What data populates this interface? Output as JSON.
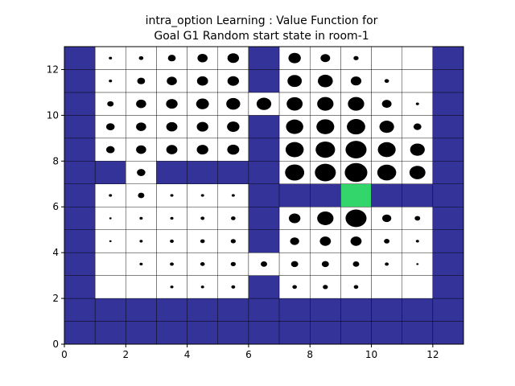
{
  "chart_data": {
    "type": "heatmap",
    "title_lines": [
      "intra_option Learning : Value Function for",
      "Goal G1 Random start state in room-1"
    ],
    "xlabel": "",
    "ylabel": "",
    "xlim": [
      0,
      13
    ],
    "ylim": [
      0,
      13
    ],
    "xticks": [
      0,
      2,
      4,
      6,
      8,
      10,
      12
    ],
    "yticks": [
      0,
      2,
      4,
      6,
      8,
      10,
      12
    ],
    "colors": {
      "wall": "#333399",
      "open": "#ffffff",
      "goal": "#33d66b",
      "value": "#000000",
      "grid": "#000000"
    },
    "goal_cell": {
      "col": 9,
      "row": 6
    },
    "open_cells": [
      [
        1,
        12
      ],
      [
        2,
        12
      ],
      [
        3,
        12
      ],
      [
        4,
        12
      ],
      [
        5,
        12
      ],
      [
        7,
        12
      ],
      [
        8,
        12
      ],
      [
        9,
        12
      ],
      [
        10,
        12
      ],
      [
        11,
        12
      ],
      [
        1,
        11
      ],
      [
        2,
        11
      ],
      [
        3,
        11
      ],
      [
        4,
        11
      ],
      [
        5,
        11
      ],
      [
        7,
        11
      ],
      [
        8,
        11
      ],
      [
        9,
        11
      ],
      [
        10,
        11
      ],
      [
        11,
        11
      ],
      [
        1,
        10
      ],
      [
        2,
        10
      ],
      [
        3,
        10
      ],
      [
        4,
        10
      ],
      [
        5,
        10
      ],
      [
        6,
        10
      ],
      [
        7,
        10
      ],
      [
        8,
        10
      ],
      [
        9,
        10
      ],
      [
        10,
        10
      ],
      [
        11,
        10
      ],
      [
        1,
        9
      ],
      [
        2,
        9
      ],
      [
        3,
        9
      ],
      [
        4,
        9
      ],
      [
        5,
        9
      ],
      [
        7,
        9
      ],
      [
        8,
        9
      ],
      [
        9,
        9
      ],
      [
        10,
        9
      ],
      [
        11,
        9
      ],
      [
        1,
        8
      ],
      [
        2,
        8
      ],
      [
        3,
        8
      ],
      [
        4,
        8
      ],
      [
        5,
        8
      ],
      [
        7,
        8
      ],
      [
        8,
        8
      ],
      [
        9,
        8
      ],
      [
        10,
        8
      ],
      [
        11,
        8
      ],
      [
        2,
        7
      ],
      [
        7,
        7
      ],
      [
        8,
        7
      ],
      [
        9,
        7
      ],
      [
        10,
        7
      ],
      [
        11,
        7
      ],
      [
        1,
        6
      ],
      [
        2,
        6
      ],
      [
        3,
        6
      ],
      [
        4,
        6
      ],
      [
        5,
        6
      ],
      [
        1,
        5
      ],
      [
        2,
        5
      ],
      [
        3,
        5
      ],
      [
        4,
        5
      ],
      [
        5,
        5
      ],
      [
        7,
        5
      ],
      [
        8,
        5
      ],
      [
        9,
        5
      ],
      [
        10,
        5
      ],
      [
        11,
        5
      ],
      [
        1,
        4
      ],
      [
        2,
        4
      ],
      [
        3,
        4
      ],
      [
        4,
        4
      ],
      [
        5,
        4
      ],
      [
        7,
        4
      ],
      [
        8,
        4
      ],
      [
        9,
        4
      ],
      [
        10,
        4
      ],
      [
        11,
        4
      ],
      [
        1,
        3
      ],
      [
        2,
        3
      ],
      [
        3,
        3
      ],
      [
        4,
        3
      ],
      [
        5,
        3
      ],
      [
        6,
        3
      ],
      [
        7,
        3
      ],
      [
        8,
        3
      ],
      [
        9,
        3
      ],
      [
        10,
        3
      ],
      [
        11,
        3
      ],
      [
        1,
        2
      ],
      [
        2,
        2
      ],
      [
        3,
        2
      ],
      [
        4,
        2
      ],
      [
        5,
        2
      ],
      [
        7,
        2
      ],
      [
        8,
        2
      ],
      [
        9,
        2
      ],
      [
        10,
        2
      ],
      [
        11,
        2
      ]
    ],
    "values": [
      [
        1,
        12,
        0.02
      ],
      [
        2,
        12,
        0.04
      ],
      [
        3,
        12,
        0.12
      ],
      [
        4,
        12,
        0.2
      ],
      [
        5,
        12,
        0.26
      ],
      [
        7,
        12,
        0.3
      ],
      [
        8,
        12,
        0.18
      ],
      [
        9,
        12,
        0.05
      ],
      [
        1,
        11,
        0.02
      ],
      [
        2,
        11,
        0.12
      ],
      [
        3,
        11,
        0.2
      ],
      [
        4,
        11,
        0.24
      ],
      [
        5,
        11,
        0.26
      ],
      [
        7,
        11,
        0.4
      ],
      [
        8,
        11,
        0.44
      ],
      [
        9,
        11,
        0.22
      ],
      [
        10,
        11,
        0.04
      ],
      [
        1,
        10,
        0.08
      ],
      [
        2,
        10,
        0.2
      ],
      [
        3,
        10,
        0.26
      ],
      [
        4,
        10,
        0.32
      ],
      [
        5,
        10,
        0.38
      ],
      [
        6,
        10,
        0.42
      ],
      [
        7,
        10,
        0.5
      ],
      [
        8,
        10,
        0.52
      ],
      [
        9,
        10,
        0.52
      ],
      [
        10,
        10,
        0.18
      ],
      [
        11,
        10,
        0.02
      ],
      [
        1,
        9,
        0.14
      ],
      [
        2,
        9,
        0.2
      ],
      [
        3,
        9,
        0.24
      ],
      [
        4,
        9,
        0.26
      ],
      [
        5,
        9,
        0.3
      ],
      [
        7,
        9,
        0.58
      ],
      [
        8,
        9,
        0.62
      ],
      [
        9,
        9,
        0.66
      ],
      [
        10,
        9,
        0.42
      ],
      [
        11,
        9,
        0.12
      ],
      [
        1,
        8,
        0.14
      ],
      [
        2,
        8,
        0.2
      ],
      [
        3,
        8,
        0.24
      ],
      [
        4,
        8,
        0.26
      ],
      [
        5,
        8,
        0.28
      ],
      [
        7,
        8,
        0.64
      ],
      [
        8,
        8,
        0.74
      ],
      [
        9,
        8,
        0.86
      ],
      [
        10,
        8,
        0.62
      ],
      [
        11,
        8,
        0.42
      ],
      [
        2,
        7,
        0.14
      ],
      [
        7,
        7,
        0.72
      ],
      [
        8,
        7,
        0.86
      ],
      [
        9,
        7,
        1.0
      ],
      [
        10,
        7,
        0.7
      ],
      [
        11,
        7,
        0.5
      ],
      [
        1,
        6,
        0.02
      ],
      [
        2,
        6,
        0.08
      ],
      [
        3,
        6,
        0.02
      ],
      [
        4,
        6,
        0.02
      ],
      [
        5,
        6,
        0.02
      ],
      [
        1,
        5,
        0.01
      ],
      [
        2,
        5,
        0.02
      ],
      [
        3,
        5,
        0.02
      ],
      [
        4,
        5,
        0.03
      ],
      [
        5,
        5,
        0.04
      ],
      [
        7,
        5,
        0.26
      ],
      [
        8,
        5,
        0.52
      ],
      [
        9,
        5,
        0.86
      ],
      [
        10,
        5,
        0.16
      ],
      [
        11,
        5,
        0.06
      ],
      [
        1,
        4,
        0.01
      ],
      [
        2,
        4,
        0.02
      ],
      [
        3,
        4,
        0.03
      ],
      [
        4,
        4,
        0.04
      ],
      [
        5,
        4,
        0.05
      ],
      [
        7,
        4,
        0.16
      ],
      [
        8,
        4,
        0.24
      ],
      [
        9,
        4,
        0.24
      ],
      [
        10,
        4,
        0.06
      ],
      [
        11,
        4,
        0.02
      ],
      [
        2,
        3,
        0.02
      ],
      [
        3,
        3,
        0.03
      ],
      [
        4,
        3,
        0.04
      ],
      [
        5,
        3,
        0.05
      ],
      [
        6,
        3,
        0.08
      ],
      [
        7,
        3,
        0.1
      ],
      [
        8,
        3,
        0.1
      ],
      [
        9,
        3,
        0.08
      ],
      [
        10,
        3,
        0.03
      ],
      [
        11,
        3,
        0.01
      ],
      [
        3,
        2,
        0.02
      ],
      [
        4,
        2,
        0.02
      ],
      [
        5,
        2,
        0.03
      ],
      [
        7,
        2,
        0.04
      ],
      [
        8,
        2,
        0.05
      ],
      [
        9,
        2,
        0.04
      ]
    ]
  }
}
